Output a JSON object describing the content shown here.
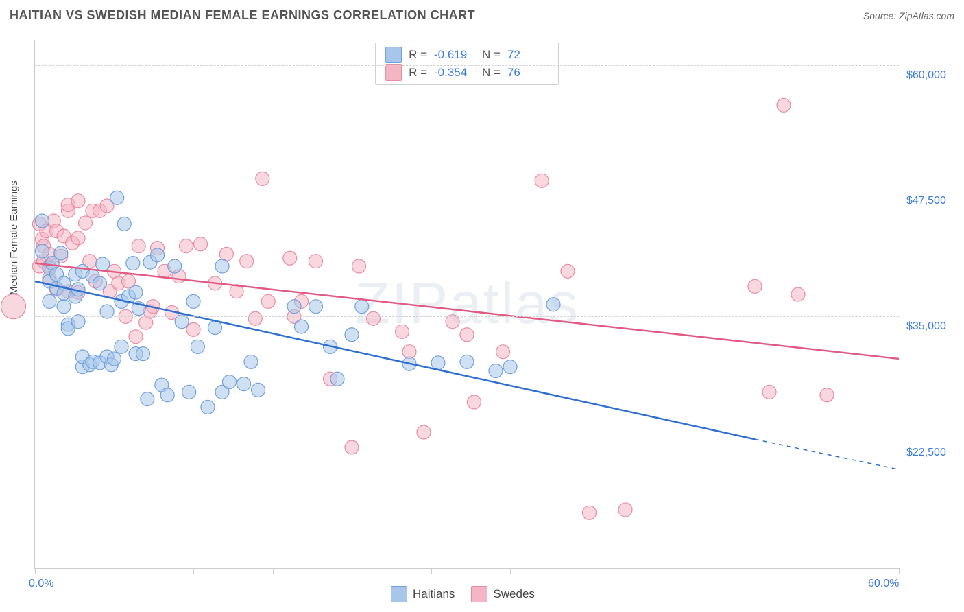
{
  "title": "HAITIAN VS SWEDISH MEDIAN FEMALE EARNINGS CORRELATION CHART",
  "source_label": "Source: ",
  "source_value": "ZipAtlas.com",
  "ylabel": "Median Female Earnings",
  "watermark": "ZIPatlas",
  "chart": {
    "type": "scatter",
    "background_color": "#ffffff",
    "grid_color": "#d0d0d0",
    "axis_color": "#cccccc",
    "text_color": "#444444",
    "value_color": "#3b7dd8",
    "xlim": [
      0,
      60
    ],
    "ylim": [
      10000,
      62500
    ],
    "x_unit": "%",
    "y_unit": "$",
    "x_tick_labels": {
      "0": "0.0%",
      "60": "60.0%"
    },
    "x_tick_positions": [
      0,
      5.5,
      11,
      16.5,
      22,
      27.5,
      33,
      60
    ],
    "y_ticks": [
      22500,
      35000,
      47500,
      60000
    ],
    "y_tick_labels": {
      "22500": "$22,500",
      "35000": "$35,000",
      "47500": "$47,500",
      "60000": "$60,000"
    },
    "series": [
      {
        "name": "Haitians",
        "label": "Haitians",
        "fill_color": "#a8c6ea",
        "fill_opacity": 0.55,
        "stroke_color": "#6fa0dd",
        "marker_radius": 10,
        "line_color": "#2f6fd0",
        "line_width": 2.5,
        "R": "-0.619",
        "N": "72",
        "trend": {
          "x1": 0,
          "y1": 38500,
          "x2": 50,
          "y2": 22800,
          "dash_x2": 60,
          "dash_y2": 19800
        },
        "points": [
          [
            0.5,
            41500
          ],
          [
            0.5,
            44500
          ],
          [
            1,
            38500
          ],
          [
            1,
            36500
          ],
          [
            1,
            39800
          ],
          [
            1.2,
            40300
          ],
          [
            1.5,
            37800
          ],
          [
            1.5,
            39200
          ],
          [
            1.8,
            41300
          ],
          [
            2,
            38300
          ],
          [
            2,
            36000
          ],
          [
            2,
            37300
          ],
          [
            2.3,
            34200
          ],
          [
            2.3,
            33800
          ],
          [
            2.8,
            39200
          ],
          [
            2.8,
            37000
          ],
          [
            3,
            37700
          ],
          [
            3,
            34500
          ],
          [
            3.3,
            30000
          ],
          [
            3.3,
            31000
          ],
          [
            3.3,
            39500
          ],
          [
            3.8,
            30200
          ],
          [
            4,
            39000
          ],
          [
            4,
            30500
          ],
          [
            4.5,
            38300
          ],
          [
            4.5,
            30400
          ],
          [
            4.7,
            40200
          ],
          [
            5,
            35500
          ],
          [
            5,
            31000
          ],
          [
            5.3,
            30200
          ],
          [
            5.5,
            30800
          ],
          [
            5.7,
            46800
          ],
          [
            6,
            36500
          ],
          [
            6,
            32000
          ],
          [
            6.2,
            44200
          ],
          [
            6.5,
            37000
          ],
          [
            6.8,
            40300
          ],
          [
            7,
            31300
          ],
          [
            7,
            37400
          ],
          [
            7.2,
            35800
          ],
          [
            7.5,
            31300
          ],
          [
            7.8,
            26800
          ],
          [
            8,
            40400
          ],
          [
            8.5,
            41100
          ],
          [
            8.8,
            28200
          ],
          [
            9.2,
            27200
          ],
          [
            9.7,
            40000
          ],
          [
            10.2,
            34500
          ],
          [
            10.7,
            27500
          ],
          [
            11,
            36500
          ],
          [
            11.3,
            32000
          ],
          [
            12,
            26000
          ],
          [
            12.5,
            33900
          ],
          [
            13,
            27500
          ],
          [
            13,
            40000
          ],
          [
            13.5,
            28500
          ],
          [
            14.5,
            28300
          ],
          [
            15,
            30500
          ],
          [
            15.5,
            27700
          ],
          [
            18.5,
            34000
          ],
          [
            18,
            36000
          ],
          [
            19.5,
            36000
          ],
          [
            20.5,
            32000
          ],
          [
            21,
            28800
          ],
          [
            22,
            33200
          ],
          [
            22.7,
            36000
          ],
          [
            26,
            30300
          ],
          [
            28,
            30400
          ],
          [
            30,
            30500
          ],
          [
            32,
            29600
          ],
          [
            33,
            30000
          ],
          [
            36,
            36200
          ]
        ]
      },
      {
        "name": "Swedes",
        "label": "Swedes",
        "fill_color": "#f4b6c5",
        "fill_opacity": 0.55,
        "stroke_color": "#e88ba3",
        "marker_radius": 10,
        "line_color": "#e05a84",
        "line_width": 2.5,
        "R": "-0.354",
        "N": "76",
        "trend": {
          "x1": 0,
          "y1": 40300,
          "x2": 60,
          "y2": 30800
        },
        "points": [
          [
            -1.5,
            36000,
            18
          ],
          [
            0.3,
            44200
          ],
          [
            0.3,
            40000
          ],
          [
            0.5,
            42700
          ],
          [
            0.6,
            42000
          ],
          [
            0.6,
            40500
          ],
          [
            0.8,
            43500
          ],
          [
            1,
            40000
          ],
          [
            1,
            38800
          ],
          [
            1,
            41200
          ],
          [
            1.3,
            44500
          ],
          [
            1.5,
            43500
          ],
          [
            1.5,
            37700
          ],
          [
            1.8,
            41000
          ],
          [
            2,
            43000
          ],
          [
            2.3,
            45500
          ],
          [
            2.3,
            37500
          ],
          [
            2.3,
            46100
          ],
          [
            2.6,
            42300
          ],
          [
            3,
            42800
          ],
          [
            3,
            37400
          ],
          [
            3,
            46500
          ],
          [
            3.5,
            44300
          ],
          [
            3.8,
            40500
          ],
          [
            4,
            45500
          ],
          [
            4.2,
            38500
          ],
          [
            4.5,
            45500
          ],
          [
            5,
            46000
          ],
          [
            5.2,
            37500
          ],
          [
            5.5,
            39500
          ],
          [
            5.8,
            38300
          ],
          [
            6.3,
            35000
          ],
          [
            6.5,
            38500
          ],
          [
            7,
            33000
          ],
          [
            7.2,
            42000
          ],
          [
            7.7,
            34400
          ],
          [
            8,
            35500
          ],
          [
            8.2,
            36000
          ],
          [
            8.5,
            41800
          ],
          [
            9,
            39500
          ],
          [
            9.5,
            35400
          ],
          [
            10,
            39000
          ],
          [
            10.5,
            42000
          ],
          [
            11,
            33700
          ],
          [
            11.5,
            42200
          ],
          [
            12.5,
            38300
          ],
          [
            13.3,
            41200
          ],
          [
            14,
            37500
          ],
          [
            14.7,
            40500
          ],
          [
            15.3,
            34800
          ],
          [
            16.2,
            36500
          ],
          [
            15.8,
            48700
          ],
          [
            17.7,
            40800
          ],
          [
            18,
            35000
          ],
          [
            18.5,
            36500
          ],
          [
            19.5,
            40500
          ],
          [
            20.5,
            28800
          ],
          [
            22,
            22000
          ],
          [
            22.5,
            40000
          ],
          [
            23.5,
            34800
          ],
          [
            25.5,
            33500
          ],
          [
            26,
            31500
          ],
          [
            27,
            23500
          ],
          [
            29,
            34500
          ],
          [
            30,
            33200
          ],
          [
            30.5,
            26500
          ],
          [
            32.5,
            31500
          ],
          [
            35.2,
            48500
          ],
          [
            37,
            39500
          ],
          [
            38.5,
            15500
          ],
          [
            41,
            15800
          ],
          [
            50,
            38000
          ],
          [
            51,
            27500
          ],
          [
            53,
            37200
          ],
          [
            55,
            27200
          ],
          [
            52,
            56000
          ]
        ]
      }
    ],
    "legend_corr": {
      "R_label": "R =",
      "N_label": "N ="
    }
  }
}
